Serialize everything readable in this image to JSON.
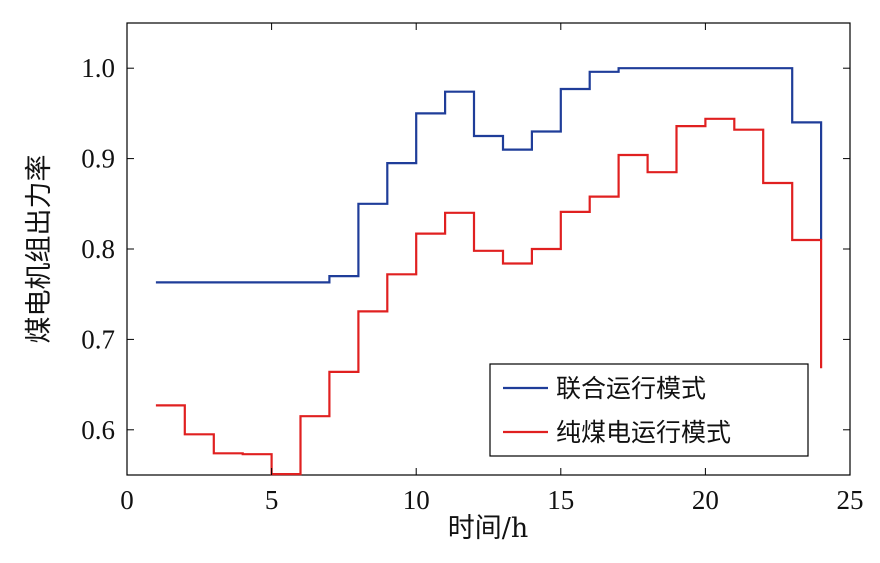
{
  "chart_data": {
    "type": "line",
    "step": true,
    "xlabel": "时间/h",
    "ylabel": "煤电机组出力率",
    "xlim": [
      0,
      25
    ],
    "ylim": [
      0.55,
      1.05
    ],
    "xticks": [
      "0",
      "5",
      "10",
      "15",
      "20",
      "25"
    ],
    "yticks": [
      "0.6",
      "0.7",
      "0.8",
      "0.9",
      "1.0"
    ],
    "grid": false,
    "legend_position": "bottom-right",
    "x": [
      1,
      2,
      3,
      4,
      5,
      6,
      7,
      8,
      9,
      10,
      11,
      12,
      13,
      14,
      15,
      16,
      17,
      18,
      19,
      20,
      21,
      22,
      23,
      24
    ],
    "series": [
      {
        "name": "联合运行模式",
        "color": "#1f3d99",
        "values": [
          0.763,
          0.763,
          0.763,
          0.763,
          0.763,
          0.763,
          0.77,
          0.85,
          0.895,
          0.95,
          0.974,
          0.925,
          0.91,
          0.93,
          0.977,
          0.996,
          1.0,
          1.0,
          1.0,
          1.0,
          1.0,
          1.0,
          0.94,
          0.81
        ]
      },
      {
        "name": "纯煤电运行模式",
        "color": "#e02020",
        "values": [
          0.627,
          0.595,
          0.574,
          0.573,
          0.551,
          0.615,
          0.664,
          0.731,
          0.772,
          0.817,
          0.84,
          0.798,
          0.784,
          0.8,
          0.841,
          0.858,
          0.904,
          0.885,
          0.936,
          0.944,
          0.932,
          0.873,
          0.81,
          0.668
        ]
      }
    ]
  }
}
